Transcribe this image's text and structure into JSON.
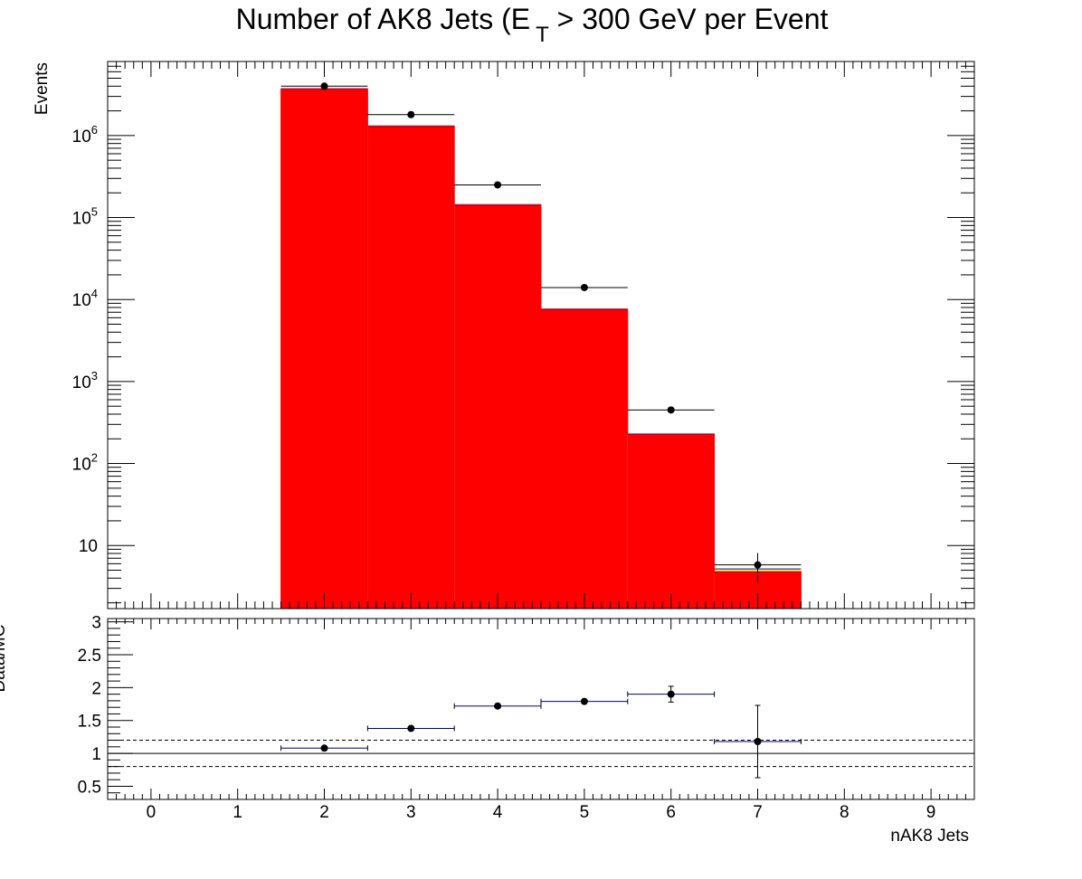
{
  "chart_data": [
    {
      "type": "bar",
      "title_main": "Number of AK8 Jets (E",
      "title_sub": "T",
      "title_rest": " > 300 GeV per Event",
      "ylabel": "Events",
      "yscale": "log",
      "ylim": [
        1.7,
        8000000
      ],
      "xlim": [
        -0.5,
        9.5
      ],
      "y_tick_labels": [
        {
          "value": 10,
          "base": "10",
          "exp": ""
        },
        {
          "value": 100,
          "base": "10",
          "exp": "2"
        },
        {
          "value": 1000,
          "base": "10",
          "exp": "3"
        },
        {
          "value": 10000,
          "base": "10",
          "exp": "4"
        },
        {
          "value": 100000,
          "base": "10",
          "exp": "5"
        },
        {
          "value": 1000000,
          "base": "10",
          "exp": "6"
        }
      ],
      "colors": {
        "background_fill": "#ff0000",
        "background_edge": "#00007f",
        "minor_component": "#ffff00",
        "data": "#000000"
      },
      "series": [
        {
          "role": "stacked-background",
          "bins": [
            {
              "x": 2,
              "value": 3700000
            },
            {
              "x": 3,
              "value": 1300000
            },
            {
              "x": 4,
              "value": 143000
            },
            {
              "x": 5,
              "value": 7600
            },
            {
              "x": 6,
              "value": 228
            },
            {
              "x": 7,
              "value": 4.8
            }
          ]
        },
        {
          "role": "data",
          "points": [
            {
              "x": 2,
              "y": 4000000
            },
            {
              "x": 3,
              "y": 1800000
            },
            {
              "x": 4,
              "y": 250000
            },
            {
              "x": 5,
              "y": 14000
            },
            {
              "x": 6,
              "y": 450
            },
            {
              "x": 7,
              "y": 5.8,
              "ylo": 3.5,
              "yhi": 8.1
            }
          ]
        }
      ]
    },
    {
      "type": "scatter",
      "ylabel": "Data/MC",
      "xlabel": "nAK8 Jets",
      "ylim": [
        0.3,
        3.05
      ],
      "xlim": [
        -0.5,
        9.5
      ],
      "x_ticks": [
        "0",
        "1",
        "2",
        "3",
        "4",
        "5",
        "6",
        "7",
        "8",
        "9"
      ],
      "y_ticks": [
        "0.5",
        "1",
        "1.5",
        "2",
        "2.5",
        "3"
      ],
      "reference_lines": [
        {
          "value": 1.0,
          "style": "solid"
        },
        {
          "value": 1.2,
          "style": "dashed"
        },
        {
          "value": 0.8,
          "style": "dashed"
        }
      ],
      "points": [
        {
          "x": 2,
          "y": 1.08,
          "err": 0.0
        },
        {
          "x": 3,
          "y": 1.38,
          "err": 0.0
        },
        {
          "x": 4,
          "y": 1.72,
          "err": 0.0
        },
        {
          "x": 5,
          "y": 1.79,
          "err": 0.0
        },
        {
          "x": 6,
          "y": 1.9,
          "err": 0.12
        },
        {
          "x": 7,
          "y": 1.18,
          "err": 0.55
        }
      ]
    }
  ]
}
